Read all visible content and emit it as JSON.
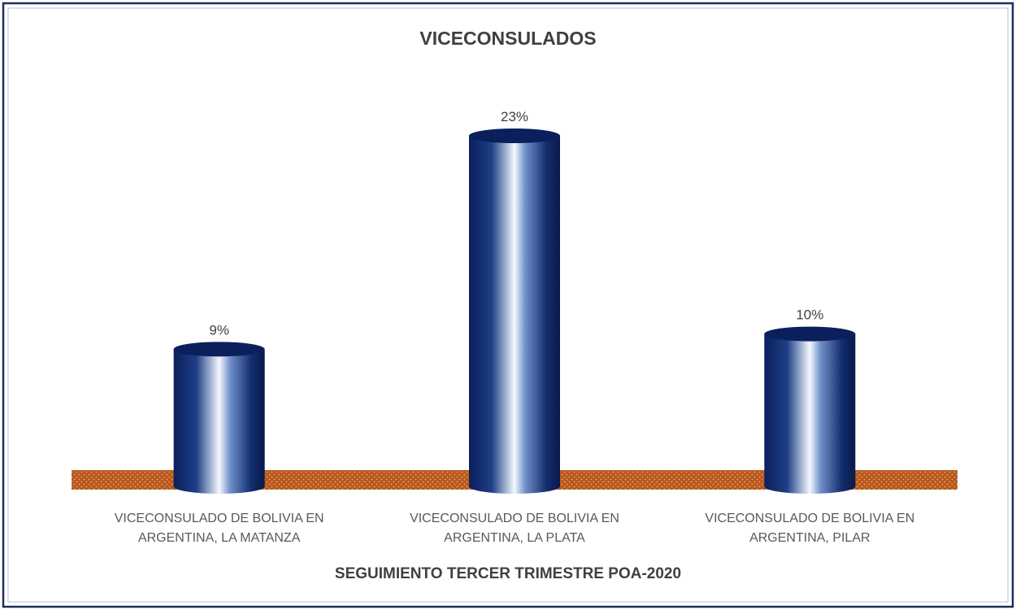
{
  "chart_data": {
    "type": "bar",
    "title": "VICECONSULADOS",
    "x_label": "SEGUIMIENTO TERCER TRIMESTRE POA-2020",
    "categories": [
      "VICECONSULADO DE BOLIVIA EN ARGENTINA, LA MATANZA",
      "VICECONSULADO DE BOLIVIA EN ARGENTINA, LA PLATA",
      "VICECONSULADO DE BOLIVIA EN ARGENTINA, PILAR"
    ],
    "values": [
      9,
      23,
      10
    ],
    "value_labels": [
      "9%",
      "23%",
      "10%"
    ],
    "color": "#0b1f5c"
  }
}
